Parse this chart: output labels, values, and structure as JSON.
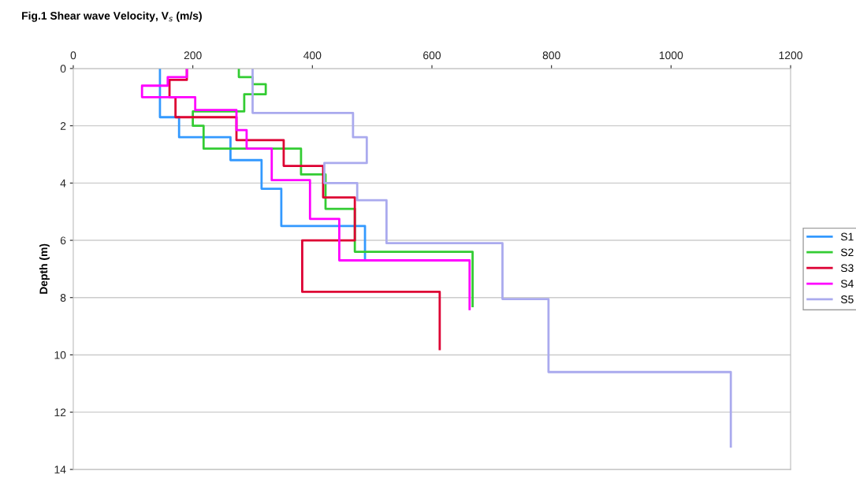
{
  "chart_data": {
    "type": "step",
    "title": "Fig.1 Shear wave Velocity, V$_{s}$ (m/s)",
    "ylabel": "Depth (m)",
    "xlim": [
      0,
      1200
    ],
    "xticks": [
      0,
      200,
      400,
      600,
      800,
      1000,
      1200
    ],
    "ylim": [
      14,
      0
    ],
    "yticks": [
      0,
      2,
      4,
      6,
      8,
      10,
      12,
      14
    ],
    "grid": "y",
    "legend": "right",
    "marker": "none",
    "line_style": "solid",
    "series": [
      {
        "name": "S1",
        "color": "#3399ff",
        "x": [
          145,
          145,
          177,
          177,
          263,
          263,
          315,
          315,
          348,
          348,
          488,
          488
        ],
        "values": [
          0,
          1.7,
          1.7,
          2.4,
          2.4,
          3.2,
          3.2,
          4.2,
          4.2,
          5.5,
          5.5,
          6.7
        ]
      },
      {
        "name": "S2",
        "color": "#33cc33",
        "x": [
          277,
          277,
          300,
          300,
          322,
          322,
          286,
          286,
          200,
          200,
          218,
          218,
          381,
          381,
          422,
          422,
          471,
          471,
          668,
          668
        ],
        "values": [
          0,
          0.3,
          0.3,
          0.55,
          0.55,
          0.9,
          0.9,
          1.5,
          1.5,
          2.0,
          2.0,
          2.8,
          2.8,
          3.7,
          3.7,
          4.9,
          4.9,
          6.4,
          6.4,
          8.3
        ]
      },
      {
        "name": "S3",
        "color": "#dd0033",
        "x": [
          190,
          190,
          161,
          161,
          171,
          171,
          273,
          273,
          352,
          352,
          418,
          418,
          471,
          471,
          383,
          383,
          613,
          613
        ],
        "values": [
          0,
          0.4,
          0.4,
          1.0,
          1.0,
          1.7,
          1.7,
          2.5,
          2.5,
          3.4,
          3.4,
          4.5,
          4.5,
          6.0,
          6.0,
          7.8,
          7.8,
          9.8
        ]
      },
      {
        "name": "S4",
        "color": "#ff00ff",
        "x": [
          190,
          190,
          158,
          158,
          115,
          115,
          204,
          204,
          273,
          273,
          290,
          290,
          332,
          332,
          396,
          396,
          445,
          445,
          663,
          663
        ],
        "values": [
          0,
          0.3,
          0.3,
          0.6,
          0.6,
          1.0,
          1.0,
          1.45,
          1.45,
          2.15,
          2.15,
          2.8,
          2.8,
          3.9,
          3.9,
          5.25,
          5.25,
          6.7,
          6.7,
          8.4
        ]
      },
      {
        "name": "S5",
        "color": "#aaaaee",
        "x": [
          300,
          300,
          468,
          468,
          491,
          491,
          420,
          420,
          475,
          475,
          524,
          524,
          718,
          718,
          795,
          795,
          1100,
          1100
        ],
        "values": [
          0,
          1.55,
          1.55,
          2.4,
          2.4,
          3.3,
          3.3,
          4.0,
          4.0,
          4.6,
          4.6,
          6.1,
          6.1,
          8.05,
          8.05,
          10.6,
          10.6,
          13.2
        ]
      }
    ]
  }
}
